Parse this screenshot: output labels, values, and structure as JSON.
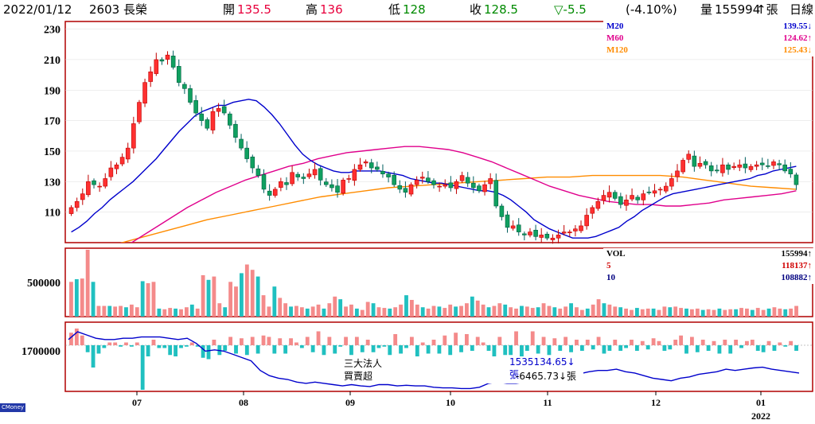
{
  "header": {
    "date": "2022/01/12",
    "stock": "2603 長榮",
    "open_label": "開",
    "open": "135.5",
    "high_label": "高",
    "high": "136",
    "low_label": "低",
    "low": "128",
    "close_label": "收",
    "close": "128.5",
    "change": "▽-5.5",
    "change_pct": "(-4.10%)",
    "volume_label": "量",
    "volume": "155994",
    "volume_unit": "↑張",
    "period": "日線"
  },
  "colors": {
    "up": "#f08080",
    "down": "#20b2aa",
    "up_border": "#c00000",
    "ma20": "#0000cc",
    "ma60": "#e0008c",
    "ma120": "#ff8c00",
    "frame": "#b00000",
    "vol_up": "#f48a8a",
    "vol_down": "#20c0c0",
    "inst_line": "#0000cc"
  },
  "price_legend": [
    {
      "name": "M20",
      "value": "139.55↓",
      "color": "#0000cc"
    },
    {
      "name": "M60",
      "value": "124.62↑",
      "color": "#e0008c"
    },
    {
      "name": "M120",
      "value": "125.43↓",
      "color": "#ff8c00"
    }
  ],
  "volume_legend": [
    {
      "name": "VOL",
      "value": "155994↑",
      "color": "#000000"
    },
    {
      "name": "5",
      "value": "118137↑",
      "color": "#d00000"
    },
    {
      "name": "10",
      "value": "108882↑",
      "color": "#000080"
    }
  ],
  "inst_box": {
    "title": "三大法人",
    "title_value": "1535134.65↓張",
    "sub": "買賣超",
    "sub_value": "-6465.73↓張"
  },
  "brand": "CMoney",
  "chart_data": {
    "type": "candlestick",
    "price_ylim": [
      90,
      235
    ],
    "price_ticks": [
      "110",
      "130",
      "150",
      "170",
      "190",
      "210",
      "230"
    ],
    "volume_ticks": [
      "500000"
    ],
    "inst_ticks": [
      "1700000"
    ],
    "x_months": [
      "07",
      "08",
      "09",
      "10",
      "11",
      "12",
      "01"
    ],
    "x_year": "2022",
    "closes": [
      113,
      117,
      122,
      130,
      128,
      127,
      132,
      139,
      141,
      146,
      152,
      168,
      182,
      195,
      202,
      210,
      209,
      213,
      205,
      195,
      191,
      182,
      175,
      170,
      165,
      176,
      178,
      175,
      167,
      159,
      152,
      145,
      139,
      134,
      125,
      121,
      125,
      130,
      128,
      136,
      133,
      132,
      135,
      138,
      131,
      128,
      126,
      123,
      131,
      132,
      138,
      141,
      143,
      139,
      138,
      135,
      133,
      128,
      125,
      123,
      128,
      131,
      133,
      130,
      128,
      127,
      128,
      126,
      130,
      134,
      129,
      126,
      124,
      128,
      132,
      114,
      107,
      100,
      101,
      97,
      95,
      97,
      94,
      95,
      93,
      93,
      95,
      97,
      97,
      99,
      101,
      108,
      113,
      117,
      121,
      123,
      119,
      115,
      118,
      121,
      118,
      122,
      123,
      124,
      125,
      127,
      132,
      137,
      144,
      148,
      140,
      142,
      141,
      137,
      137,
      141,
      138,
      140,
      141,
      139,
      140,
      141,
      141,
      140,
      143,
      141,
      137,
      135,
      128
    ],
    "ma20": [
      97,
      100,
      104,
      109,
      113,
      118,
      122,
      126,
      130,
      135,
      140,
      145,
      151,
      157,
      163,
      168,
      173,
      176,
      178,
      180,
      180,
      182,
      183,
      184,
      183,
      179,
      174,
      168,
      161,
      154,
      148,
      144,
      141,
      139,
      137,
      136,
      136,
      137,
      137,
      137,
      137,
      136,
      135,
      134,
      132,
      131,
      130,
      129,
      129,
      128,
      127,
      126,
      125,
      124,
      124,
      123,
      121,
      118,
      114,
      110,
      105,
      102,
      99,
      97,
      95,
      93,
      93,
      93,
      94,
      96,
      98,
      100,
      104,
      107,
      111,
      114,
      117,
      120,
      122,
      123,
      124,
      125,
      126,
      127,
      128,
      129,
      130,
      131,
      132,
      134,
      135,
      137,
      138,
      139,
      140
    ],
    "ma60": [
      70,
      74,
      79,
      84,
      89,
      95,
      101,
      107,
      113,
      118,
      123,
      127,
      131,
      134,
      137,
      140,
      142,
      145,
      147,
      149,
      150,
      151,
      152,
      153,
      153,
      152,
      151,
      149,
      146,
      143,
      139,
      135,
      131,
      127,
      124,
      121,
      119,
      117,
      116,
      115,
      115,
      114,
      114,
      115,
      116,
      118,
      119,
      120,
      121,
      122,
      124
    ],
    "ma120": [
      81,
      85,
      89,
      93,
      97,
      101,
      105,
      108,
      111,
      114,
      117,
      120,
      122,
      124,
      126,
      127,
      128,
      129,
      130,
      131,
      132,
      133,
      133,
      134,
      134,
      134,
      134,
      133,
      131,
      129,
      127,
      126,
      125
    ],
    "volume_relative": [
      0.52,
      0.56,
      0.57,
      1.0,
      0.52,
      0.16,
      0.16,
      0.16,
      0.15,
      0.16,
      0.14,
      0.18,
      0.14,
      0.53,
      0.5,
      0.52,
      0.12,
      0.11,
      0.13,
      0.12,
      0.11,
      0.14,
      0.18,
      0.12,
      0.62,
      0.55,
      0.6,
      0.2,
      0.14,
      0.52,
      0.45,
      0.65,
      0.78,
      0.7,
      0.6,
      0.32,
      0.15,
      0.45,
      0.28,
      0.2,
      0.15,
      0.16,
      0.14,
      0.12,
      0.15,
      0.18,
      0.12,
      0.2,
      0.3,
      0.26,
      0.15,
      0.18,
      0.12,
      0.1,
      0.22,
      0.2,
      0.14,
      0.13,
      0.12,
      0.14,
      0.18,
      0.32,
      0.25,
      0.18,
      0.14,
      0.12,
      0.16,
      0.15,
      0.13,
      0.18,
      0.15,
      0.16,
      0.2,
      0.3,
      0.24,
      0.18,
      0.14,
      0.16,
      0.2,
      0.18,
      0.14,
      0.12,
      0.16,
      0.15,
      0.13,
      0.14,
      0.2,
      0.16,
      0.14,
      0.12,
      0.15,
      0.2,
      0.14,
      0.1,
      0.12,
      0.18,
      0.26,
      0.2,
      0.18,
      0.15,
      0.14,
      0.12,
      0.1,
      0.13,
      0.11,
      0.12,
      0.12,
      0.1,
      0.15,
      0.14,
      0.15,
      0.13,
      0.12,
      0.11,
      0.12,
      0.1,
      0.11,
      0.1,
      0.12,
      0.1,
      0.11,
      0.11,
      0.13,
      0.12,
      0.1,
      0.13,
      0.1,
      0.12,
      0.14,
      0.12,
      0.11,
      0.12,
      0.16
    ],
    "inst_relative": [
      0.45,
      0.6,
      0.35,
      -0.25,
      -0.8,
      -0.3,
      -0.1,
      0.1,
      0.1,
      -0.05,
      0.1,
      -0.05,
      0.1,
      -1.6,
      -0.4,
      0.2,
      -0.1,
      -0.1,
      -0.35,
      -0.4,
      -0.1,
      -0.05,
      0.1,
      -0.05,
      -0.45,
      -0.5,
      0.2,
      -0.35,
      -0.2,
      0.3,
      -0.3,
      0.25,
      -0.35,
      0.3,
      -0.3,
      0.35,
      0.3,
      -0.3,
      0.25,
      -0.3,
      0.25,
      0.1,
      -0.1,
      0.3,
      -0.25,
      0.5,
      -0.35,
      0.3,
      -0.3,
      -0.05,
      0.3,
      -0.35,
      0.3,
      -0.25,
      0.2,
      -0.25,
      -0.1,
      -0.05,
      -0.35,
      0.4,
      -0.3,
      -0.1,
      0.3,
      -0.4,
      0.1,
      -0.3,
      0.2,
      -0.3,
      0.35,
      -0.35,
      0.45,
      -0.25,
      0.4,
      -0.2,
      0.3,
      0.1,
      -0.2,
      -0.4,
      0.3,
      -0.35,
      -0.35,
      0.5,
      -0.5,
      -0.2,
      0.5,
      -0.3,
      0.3,
      -0.35,
      0.25,
      -0.2,
      0.3,
      -0.25,
      0.2,
      -0.2,
      0.2,
      -0.15,
      0.3,
      -0.3,
      -0.2,
      0.2,
      -0.2,
      -0.1,
      0.2,
      -0.2,
      0.15,
      -0.15,
      0.25,
      0.15,
      -0.2,
      -0.15,
      0.2,
      0.35,
      -0.3,
      0.3,
      -0.25,
      0.2,
      -0.2,
      0.15,
      -0.3,
      0.2,
      -0.3,
      0.2,
      -0.1,
      0.15,
      0.2,
      -0.2,
      -0.25,
      0.15,
      -0.2,
      0.1,
      -0.05,
      0.15,
      -0.2
    ],
    "inst_cumulative_relative": [
      0.78,
      0.9,
      0.85,
      0.8,
      0.78,
      0.78,
      0.8,
      0.8,
      0.82,
      0.82,
      0.82,
      0.8,
      0.78,
      0.8,
      0.72,
      0.6,
      0.62,
      0.6,
      0.55,
      0.5,
      0.45,
      0.3,
      0.22,
      0.18,
      0.16,
      0.12,
      0.1,
      0.12,
      0.1,
      0.08,
      0.06,
      0.08,
      0.06,
      0.05,
      0.08,
      0.08,
      0.06,
      0.07,
      0.06,
      0.06,
      0.04,
      0.03,
      0.03,
      0.02,
      0.02,
      0.04,
      0.1,
      0.12,
      0.1,
      0.1,
      0.12,
      0.14,
      0.16,
      0.2,
      0.22,
      0.2,
      0.25,
      0.28,
      0.3,
      0.3,
      0.32,
      0.28,
      0.26,
      0.22,
      0.18,
      0.16,
      0.14,
      0.18,
      0.2,
      0.24,
      0.26,
      0.28,
      0.32,
      0.3,
      0.32,
      0.34,
      0.35,
      0.32,
      0.3,
      0.28,
      0.26
    ]
  }
}
